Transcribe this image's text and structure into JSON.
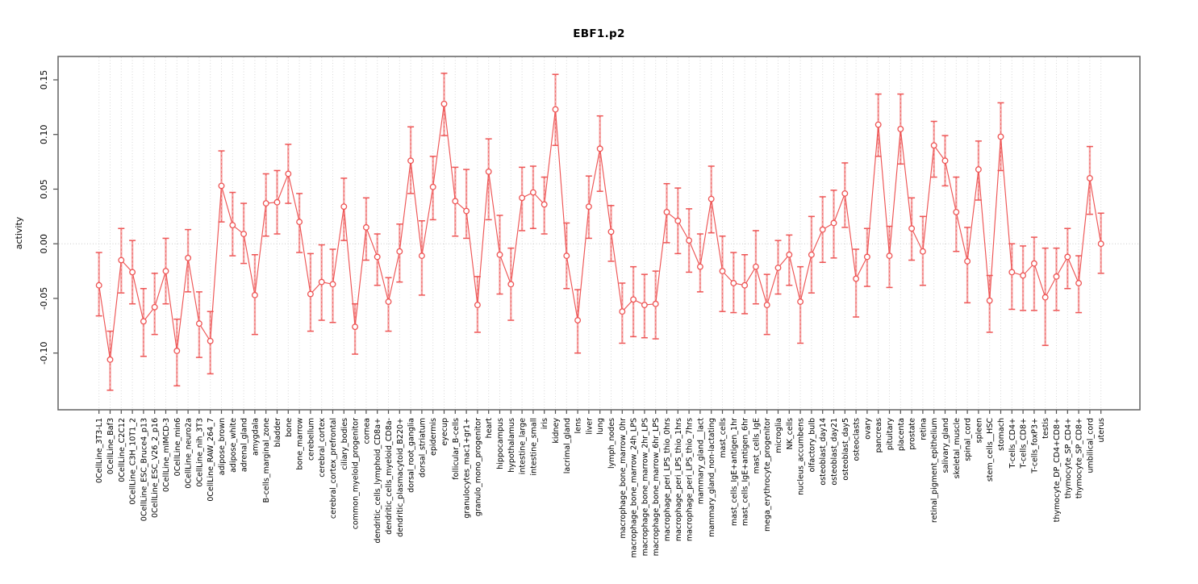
{
  "chart_data": {
    "type": "line",
    "title": "EBF1.p2",
    "ylabel": "activity",
    "xlabel": "",
    "legend_position": "none",
    "grid": "vertical-dotted-per-category, dotted zero line",
    "ylim": [
      -0.1519,
      0.1714
    ],
    "ytick_values": [
      -0.1,
      -0.05,
      0.0,
      0.05,
      0.1,
      0.15
    ],
    "ytick_labels": [
      "-0.10",
      "-0.05",
      "0.00",
      "0.05",
      "0.10",
      "0.15"
    ],
    "categories": [
      "0CellLine_3T3-L1",
      "0CellLine_Baf3",
      "0CellLine_C2C12",
      "0CellLine_C3H_10T1_2",
      "0CellLine_ESC_Bruce4_p13",
      "0CellLine_ESC_V26_2_p16",
      "0CellLine_mIMCD-3",
      "0CellLine_min6",
      "0CellLine_neuro2a",
      "0CellLine_nih_3T3",
      "0CellLine_RAW_264_7",
      "adipose_brown",
      "adipose_white",
      "adrenal_gland",
      "amygdala",
      "B-cells_marginal_zone",
      "bladder",
      "bone",
      "bone_marrow",
      "cerebellum",
      "cerebral_cortex",
      "cerebral_cortex_prefrontal",
      "ciliary_bodies",
      "common_myeloid_progenitor",
      "cornea",
      "dendritic_cells_lymphoid_CD8a+",
      "dendritic_cells_myeloid_CD8a-",
      "dendritic_plasmacytoid_B220+",
      "dorsal_root_ganglia",
      "dorsal_striatum",
      "epidermis",
      "eyecup",
      "follicular_B-cells",
      "granulocytes_mac1+gr1+",
      "granulo_mono_progenitor",
      "heart",
      "hippocampus",
      "hypothalamus",
      "intestine_large",
      "intestine_small",
      "iris",
      "kidney",
      "lacrimal_gland",
      "lens",
      "liver",
      "lung",
      "lymph_nodes",
      "macrophage_bone_marrow_0hr",
      "macrophage_bone_marrow_24h_LPS",
      "macrophage_bone_marrow_2hr_LPS",
      "macrophage_bone_marrow_6hr_LPS",
      "macrophage_peri_LPS_thio_0hrs",
      "macrophage_peri_LPS_thio_1hrs",
      "macrophage_peri_LPS_thio_7hrs",
      "mammary_gland__lact",
      "mammary_gland_non-lactating",
      "mast_cells",
      "mast_cells_IgE+antigen_1hr",
      "mast_cells_IgE+antigen_6hr",
      "mast_cells_IgE",
      "mega_erythrocyte_progenitor",
      "microglia",
      "NK_cells",
      "nucleus_accumbens",
      "olfactory_bulb",
      "osteoblast_day14",
      "osteoblast_day21",
      "osteoblast_day5",
      "osteoclasts",
      "ovary",
      "pancreas",
      "pituitary",
      "placenta",
      "prostate",
      "retina",
      "retinal_pigment_epithelium",
      "salivary_gland",
      "skeletal_muscle",
      "spinal_cord",
      "spleen",
      "stem_cells__HSC",
      "stomach",
      "T-cells_CD4+",
      "T-cells_CD8+",
      "T-cells_foxP3+",
      "testis",
      "thymocyte_DP_CD4+CD8+",
      "thymocyte_SP_CD4+",
      "thymocyte_SP_CD8+",
      "umbilical_cord",
      "uterus"
    ],
    "values": [
      -0.038,
      -0.106,
      -0.015,
      -0.026,
      -0.071,
      -0.058,
      -0.025,
      -0.098,
      -0.013,
      -0.073,
      -0.089,
      0.053,
      0.017,
      0.009,
      -0.047,
      0.037,
      0.038,
      0.064,
      0.02,
      -0.046,
      -0.035,
      -0.037,
      0.034,
      -0.076,
      0.015,
      -0.012,
      -0.053,
      -0.007,
      0.076,
      -0.011,
      0.052,
      0.128,
      0.039,
      0.03,
      -0.056,
      0.066,
      -0.01,
      -0.037,
      0.042,
      0.047,
      0.036,
      0.123,
      -0.011,
      -0.07,
      0.034,
      0.087,
      0.011,
      -0.062,
      -0.051,
      -0.056,
      -0.055,
      0.029,
      0.021,
      0.003,
      -0.021,
      0.041,
      -0.025,
      -0.036,
      -0.038,
      -0.021,
      -0.056,
      -0.022,
      -0.01,
      -0.053,
      -0.01,
      0.013,
      0.019,
      0.046,
      -0.032,
      -0.012,
      0.109,
      -0.011,
      0.105,
      0.014,
      -0.007,
      0.09,
      0.076,
      0.029,
      -0.016,
      0.068,
      -0.052,
      0.098,
      -0.026,
      -0.029,
      -0.018,
      -0.049,
      -0.03,
      -0.012,
      -0.036,
      0.06,
      0.0
    ],
    "err_lo": [
      -0.066,
      -0.134,
      -0.045,
      -0.055,
      -0.103,
      -0.083,
      -0.055,
      -0.13,
      -0.044,
      -0.104,
      -0.119,
      0.02,
      -0.011,
      -0.018,
      -0.083,
      0.007,
      0.009,
      0.037,
      -0.008,
      -0.08,
      -0.07,
      -0.072,
      0.003,
      -0.101,
      -0.015,
      -0.038,
      -0.08,
      -0.035,
      0.046,
      -0.047,
      0.022,
      0.099,
      0.007,
      0.005,
      -0.081,
      0.022,
      -0.046,
      -0.07,
      0.012,
      0.014,
      0.009,
      0.09,
      -0.041,
      -0.1,
      0.005,
      0.048,
      -0.016,
      -0.091,
      -0.085,
      -0.086,
      -0.087,
      0.001,
      -0.009,
      -0.026,
      -0.044,
      0.01,
      -0.062,
      -0.063,
      -0.064,
      -0.055,
      -0.083,
      -0.046,
      -0.038,
      -0.091,
      -0.045,
      -0.017,
      -0.013,
      0.015,
      -0.067,
      -0.039,
      0.08,
      -0.04,
      0.073,
      -0.015,
      -0.038,
      0.061,
      0.053,
      -0.007,
      -0.054,
      0.04,
      -0.081,
      0.067,
      -0.06,
      -0.061,
      -0.061,
      -0.093,
      -0.061,
      -0.041,
      -0.063,
      0.027,
      -0.027
    ],
    "err_hi": [
      -0.008,
      -0.08,
      0.014,
      0.003,
      -0.041,
      -0.027,
      0.005,
      -0.069,
      0.013,
      -0.044,
      -0.062,
      0.085,
      0.047,
      0.037,
      -0.01,
      0.064,
      0.067,
      0.091,
      0.046,
      -0.009,
      -0.001,
      -0.005,
      0.06,
      -0.055,
      0.042,
      0.009,
      -0.031,
      0.018,
      0.107,
      0.021,
      0.08,
      0.156,
      0.07,
      0.068,
      -0.03,
      0.096,
      0.026,
      -0.004,
      0.07,
      0.071,
      0.061,
      0.155,
      0.019,
      -0.042,
      0.062,
      0.117,
      0.035,
      -0.036,
      -0.021,
      -0.028,
      -0.025,
      0.055,
      0.051,
      0.032,
      0.009,
      0.071,
      0.007,
      -0.008,
      -0.01,
      0.012,
      -0.028,
      0.003,
      0.008,
      -0.021,
      0.025,
      0.043,
      0.049,
      0.074,
      -0.005,
      0.014,
      0.137,
      0.016,
      0.137,
      0.042,
      0.025,
      0.112,
      0.099,
      0.061,
      0.015,
      0.094,
      -0.029,
      0.129,
      0.0,
      -0.002,
      0.006,
      -0.004,
      -0.004,
      0.014,
      -0.011,
      0.089,
      0.028
    ],
    "colors": {
      "series_line": "#ee5555",
      "point_stroke": "#ee5555",
      "error_stem": "#f49a9a",
      "error_cap": "#ee5555",
      "gridline": "#d8d8d8",
      "zero_line": "#cccccc",
      "frame": "#6a6a6a",
      "tick": "#4d4d4d",
      "text": "#000000"
    }
  }
}
